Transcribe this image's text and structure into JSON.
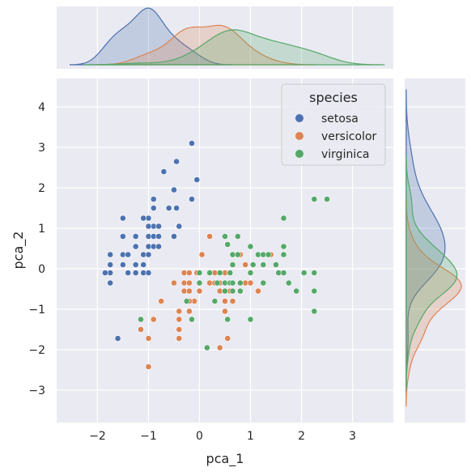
{
  "chart_data": {
    "type": "scatter",
    "subtype": "jointplot with marginal kde",
    "xlabel": "pca_1",
    "ylabel": "pca_2",
    "xlim": [
      -2.8,
      3.8
    ],
    "ylim": [
      -3.8,
      4.7
    ],
    "xticks": [
      -2,
      -1,
      0,
      1,
      2,
      3
    ],
    "yticks": [
      -3,
      -2,
      -1,
      0,
      1,
      2,
      3,
      4
    ],
    "grid": true,
    "background": "#eaeaf2",
    "legend": {
      "title": "species",
      "placement": "top-right",
      "entries": [
        "setosa",
        "versicolor",
        "virginica"
      ]
    },
    "series": [
      {
        "name": "setosa",
        "color": "#4c72b0",
        "points": [
          [
            -0.15,
            3.1
          ],
          [
            -0.45,
            2.65
          ],
          [
            -0.05,
            2.2
          ],
          [
            -0.7,
            2.4
          ],
          [
            -0.15,
            1.72
          ],
          [
            -0.9,
            1.72
          ],
          [
            -0.5,
            1.95
          ],
          [
            -0.9,
            1.5
          ],
          [
            -0.6,
            1.5
          ],
          [
            -0.45,
            1.5
          ],
          [
            -1.0,
            1.25
          ],
          [
            -1.1,
            1.25
          ],
          [
            -1.5,
            1.25
          ],
          [
            -0.9,
            1.05
          ],
          [
            -1.0,
            1.05
          ],
          [
            -0.8,
            1.05
          ],
          [
            -0.4,
            1.05
          ],
          [
            -1.5,
            0.8
          ],
          [
            -1.25,
            0.8
          ],
          [
            -1.0,
            0.8
          ],
          [
            -0.9,
            0.8
          ],
          [
            -0.8,
            0.8
          ],
          [
            -0.5,
            0.8
          ],
          [
            -1.0,
            0.55
          ],
          [
            -0.9,
            0.55
          ],
          [
            -1.25,
            0.55
          ],
          [
            -0.8,
            0.55
          ],
          [
            -1.75,
            0.35
          ],
          [
            -1.5,
            0.35
          ],
          [
            -1.4,
            0.35
          ],
          [
            -1.1,
            0.35
          ],
          [
            -1.0,
            0.35
          ],
          [
            -1.5,
            0.1
          ],
          [
            -1.25,
            0.1
          ],
          [
            -1.1,
            0.1
          ],
          [
            -1.75,
            0.1
          ],
          [
            -1.25,
            -0.1
          ],
          [
            -1.1,
            -0.1
          ],
          [
            -1.0,
            -0.1
          ],
          [
            -1.4,
            -0.1
          ],
          [
            -1.75,
            -0.1
          ],
          [
            -1.85,
            -0.1
          ],
          [
            -1.75,
            -0.35
          ],
          [
            -1.6,
            -1.72
          ]
        ]
      },
      {
        "name": "versicolor",
        "color": "#dd8452",
        "points": [
          [
            0.2,
            0.8
          ],
          [
            0.05,
            0.35
          ],
          [
            0.8,
            0.35
          ],
          [
            1.4,
            0.35
          ],
          [
            0.9,
            0.1
          ],
          [
            -0.3,
            -0.1
          ],
          [
            -0.2,
            -0.1
          ],
          [
            -0.05,
            -0.1
          ],
          [
            0.3,
            -0.1
          ],
          [
            0.5,
            -0.1
          ],
          [
            0.6,
            -0.1
          ],
          [
            -0.5,
            -0.35
          ],
          [
            -0.3,
            -0.35
          ],
          [
            -0.2,
            -0.35
          ],
          [
            0.2,
            -0.35
          ],
          [
            0.3,
            -0.35
          ],
          [
            0.4,
            -0.35
          ],
          [
            0.5,
            -0.35
          ],
          [
            0.6,
            -0.35
          ],
          [
            0.9,
            -0.35
          ],
          [
            1.0,
            -0.35
          ],
          [
            1.15,
            -0.55
          ],
          [
            0.4,
            -0.55
          ],
          [
            0.6,
            -0.55
          ],
          [
            -0.3,
            -0.55
          ],
          [
            -0.2,
            -0.55
          ],
          [
            0.0,
            -0.55
          ],
          [
            -0.1,
            -0.8
          ],
          [
            -0.2,
            -0.8
          ],
          [
            0.3,
            -0.8
          ],
          [
            0.5,
            -0.8
          ],
          [
            0.65,
            -0.8
          ],
          [
            -0.75,
            -0.8
          ],
          [
            -0.4,
            -1.05
          ],
          [
            -0.2,
            -1.05
          ],
          [
            0.5,
            -1.05
          ],
          [
            -0.4,
            -1.25
          ],
          [
            -0.9,
            -1.25
          ],
          [
            -0.4,
            -1.5
          ],
          [
            -1.15,
            -1.5
          ],
          [
            -0.4,
            -1.72
          ],
          [
            -1.0,
            -1.72
          ],
          [
            0.55,
            -1.72
          ],
          [
            0.4,
            -1.95
          ],
          [
            -1.0,
            -2.42
          ]
        ]
      },
      {
        "name": "virginica",
        "color": "#55a868",
        "points": [
          [
            2.25,
            1.72
          ],
          [
            2.5,
            1.72
          ],
          [
            1.65,
            1.25
          ],
          [
            0.5,
            0.8
          ],
          [
            0.75,
            0.8
          ],
          [
            0.55,
            0.6
          ],
          [
            1.0,
            0.55
          ],
          [
            1.65,
            0.55
          ],
          [
            0.65,
            0.35
          ],
          [
            0.75,
            0.35
          ],
          [
            1.15,
            0.35
          ],
          [
            1.25,
            0.35
          ],
          [
            1.35,
            0.35
          ],
          [
            1.65,
            0.35
          ],
          [
            0.65,
            0.1
          ],
          [
            1.05,
            0.1
          ],
          [
            1.25,
            0.1
          ],
          [
            1.5,
            0.1
          ],
          [
            0.0,
            -0.1
          ],
          [
            0.2,
            -0.1
          ],
          [
            0.4,
            -0.1
          ],
          [
            0.6,
            -0.1
          ],
          [
            1.0,
            -0.1
          ],
          [
            1.55,
            -0.1
          ],
          [
            1.65,
            -0.1
          ],
          [
            2.05,
            -0.1
          ],
          [
            2.25,
            -0.1
          ],
          [
            0.0,
            -0.35
          ],
          [
            0.35,
            -0.35
          ],
          [
            0.5,
            -0.35
          ],
          [
            0.6,
            -0.35
          ],
          [
            0.65,
            -0.35
          ],
          [
            0.8,
            -0.35
          ],
          [
            1.25,
            -0.35
          ],
          [
            1.75,
            -0.35
          ],
          [
            0.5,
            -0.55
          ],
          [
            0.65,
            -0.55
          ],
          [
            0.8,
            -0.55
          ],
          [
            1.9,
            -0.55
          ],
          [
            2.25,
            -0.55
          ],
          [
            0.3,
            -0.8
          ],
          [
            -0.25,
            -0.8
          ],
          [
            0.55,
            -1.25
          ],
          [
            1.0,
            -1.25
          ],
          [
            2.25,
            -1.05
          ],
          [
            -0.15,
            -1.25
          ],
          [
            -1.15,
            -1.25
          ],
          [
            0.15,
            -1.95
          ]
        ]
      }
    ]
  }
}
